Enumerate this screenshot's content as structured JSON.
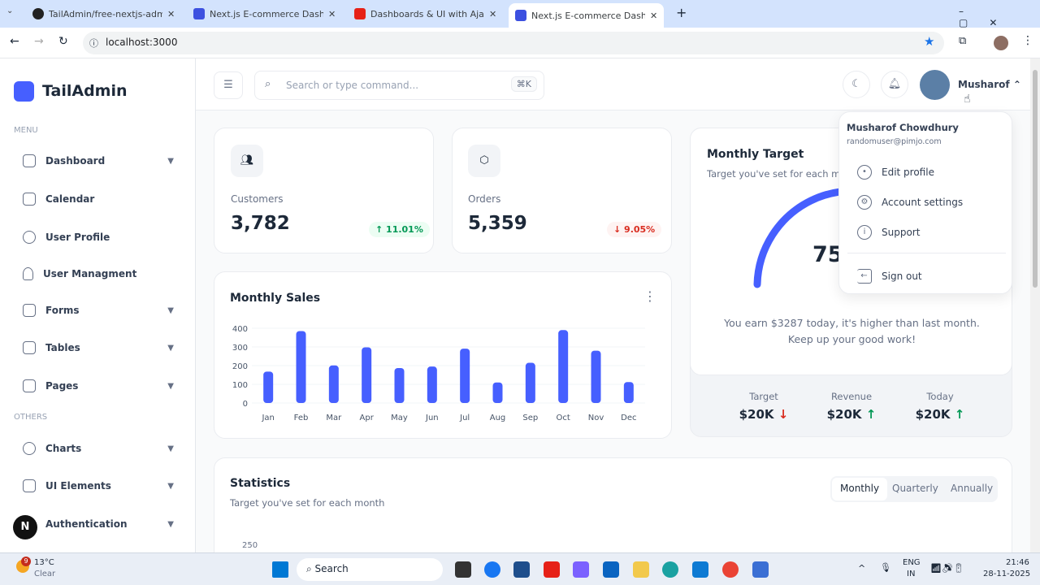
{
  "browser": {
    "tabs": [
      {
        "title": "TailAdmin/free-nextjs-admin-da",
        "icon": "github-icon"
      },
      {
        "title": "Next.js E-commerce Dashboard",
        "icon": "tailadmin-icon"
      },
      {
        "title": "Dashboards & UI with Ajay - Yo",
        "icon": "youtube-icon"
      },
      {
        "title": "Next.js E-commerce Dashboard",
        "icon": "tailadmin-icon",
        "active": true
      }
    ],
    "url": "localhost:3000"
  },
  "sidebar": {
    "brand": "TailAdmin",
    "menu_label": "MENU",
    "others_label": "OTHERS",
    "items": [
      {
        "label": "Dashboard",
        "chevron": true
      },
      {
        "label": "Calendar"
      },
      {
        "label": "User Profile"
      },
      {
        "label": "User Managment"
      },
      {
        "label": "Forms",
        "chevron": true
      },
      {
        "label": "Tables",
        "chevron": true
      },
      {
        "label": "Pages",
        "chevron": true
      }
    ],
    "others": [
      {
        "label": "Charts",
        "chevron": true
      },
      {
        "label": "UI Elements",
        "chevron": true
      },
      {
        "label": "Authentication",
        "chevron": true
      }
    ],
    "nextjs_badge": "N"
  },
  "header": {
    "search_placeholder": "Search or type command...",
    "shortcut": "⌘K",
    "user": "Musharof"
  },
  "cards": {
    "customers": {
      "label": "Customers",
      "value": "3,782",
      "change": "↑ 11.01%"
    },
    "orders": {
      "label": "Orders",
      "value": "5,359",
      "change": "↓ 9.05%"
    }
  },
  "monthly_target": {
    "title": "Monthly Target",
    "subtitle": "Target you've set for each month",
    "percent": "75",
    "message": "You earn $3287 today, it's higher than last month. Keep up your good work!",
    "stats": [
      {
        "label": "Target",
        "value": "$20K",
        "arrow": "↓"
      },
      {
        "label": "Revenue",
        "value": "$20K",
        "arrow": "↑"
      },
      {
        "label": "Today",
        "value": "$20K",
        "arrow": "↑"
      }
    ]
  },
  "statistics": {
    "title": "Statistics",
    "subtitle": "Target you've set for each month",
    "tabs": [
      "Monthly",
      "Quarterly",
      "Annually"
    ],
    "active_tab": "Monthly",
    "first_tick": "250"
  },
  "dropdown": {
    "name": "Musharof Chowdhury",
    "email": "randomuser@pimjo.com",
    "items": [
      "Edit profile",
      "Account settings",
      "Support"
    ],
    "signout": "Sign out"
  },
  "chart_data": {
    "type": "bar",
    "title": "Monthly Sales",
    "categories": [
      "Jan",
      "Feb",
      "Mar",
      "Apr",
      "May",
      "Jun",
      "Jul",
      "Aug",
      "Sep",
      "Oct",
      "Nov",
      "Dec"
    ],
    "values": [
      168,
      385,
      201,
      298,
      187,
      195,
      291,
      110,
      215,
      390,
      280,
      112
    ],
    "ylim": [
      0,
      400
    ],
    "yticks": [
      0,
      100,
      200,
      300,
      400
    ],
    "color": "#465fff",
    "grid": true
  },
  "taskbar": {
    "weather_temp": "13°C",
    "weather_desc": "Clear",
    "weather_badge": "9",
    "search": "Search",
    "lang": "ENG",
    "region": "IN",
    "time": "21:46",
    "date": "28-11-2025"
  }
}
